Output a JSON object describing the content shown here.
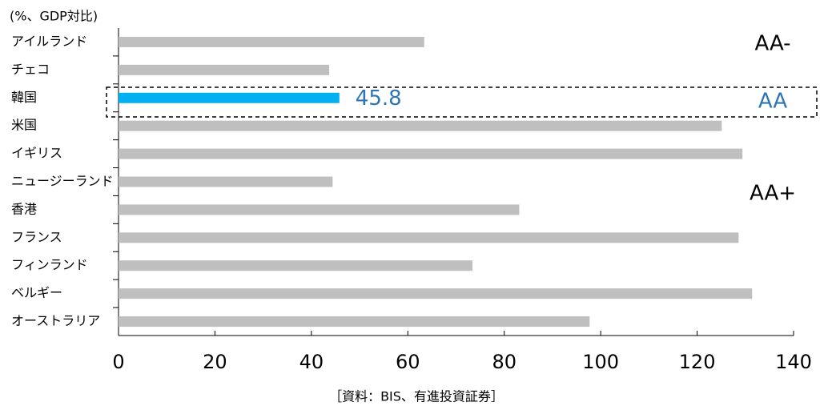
{
  "chart_data": {
    "type": "bar",
    "orientation": "horizontal",
    "unit_label": "(%、GDP対比)",
    "source": "［資料：BIS、有進投資証券］",
    "categories": [
      "アイルランド",
      "チェコ",
      "韓国",
      "米国",
      "イギリス",
      "ニュージーランド",
      "香港",
      "フランス",
      "フィンランド",
      "ベルギー",
      "オーストラリア"
    ],
    "values": [
      63.4,
      43.7,
      45.8,
      125.1,
      129.4,
      44.4,
      83.1,
      128.6,
      73.4,
      131.4,
      97.7
    ],
    "colors": [
      "#bfbfbf",
      "#bfbfbf",
      "#00b0f0",
      "#bfbfbf",
      "#bfbfbf",
      "#bfbfbf",
      "#bfbfbf",
      "#bfbfbf",
      "#bfbfbf",
      "#bfbfbf",
      "#bfbfbf"
    ],
    "value_labels": [
      null,
      null,
      "45.8",
      null,
      null,
      null,
      null,
      null,
      null,
      null,
      null
    ],
    "value_label_color": "#2e75b6",
    "annotations": [
      {
        "text": "AA-",
        "color": "#000000"
      },
      {
        "text": "AA",
        "color": "#2e75b6"
      },
      {
        "text": "AA+",
        "color": "#000000"
      }
    ],
    "xlim": [
      0,
      140
    ],
    "xticks": [
      0,
      20,
      40,
      60,
      80,
      100,
      120,
      140
    ],
    "grid": false
  }
}
